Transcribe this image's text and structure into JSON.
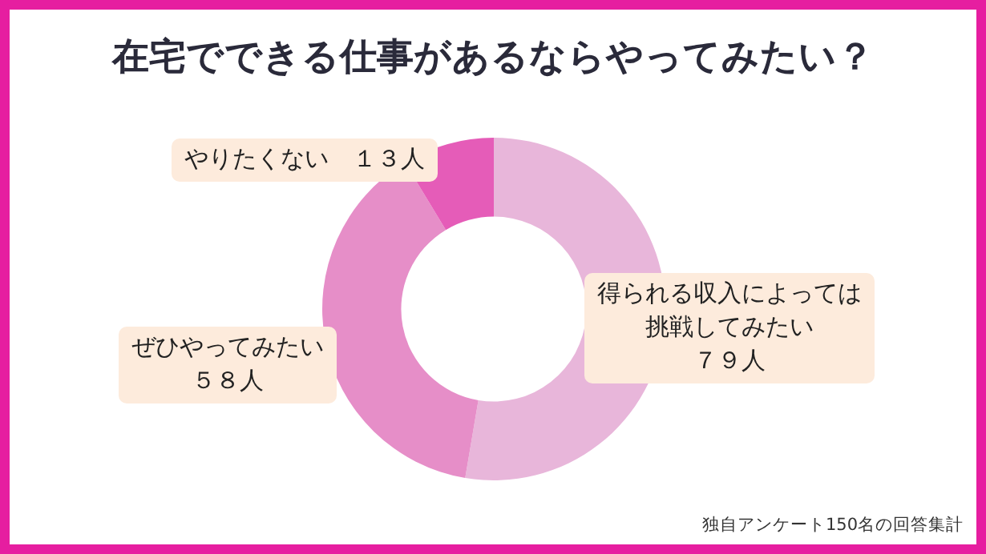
{
  "chart_data": {
    "type": "donut",
    "title": "在宅でできる仕事があるならやってみたい？",
    "categories": [
      "得られる収入によっては挑戦してみたい",
      "ぜひやってみたい",
      "やりたくない"
    ],
    "values": [
      79,
      58,
      13
    ],
    "value_labels": [
      "７９人",
      "５８人",
      "１３人"
    ],
    "colors": [
      "#e8b6da",
      "#e68ec8",
      "#e55cb8"
    ],
    "legend": false,
    "annotations": [
      "独自アンケート150名の回答集計"
    ]
  }
}
